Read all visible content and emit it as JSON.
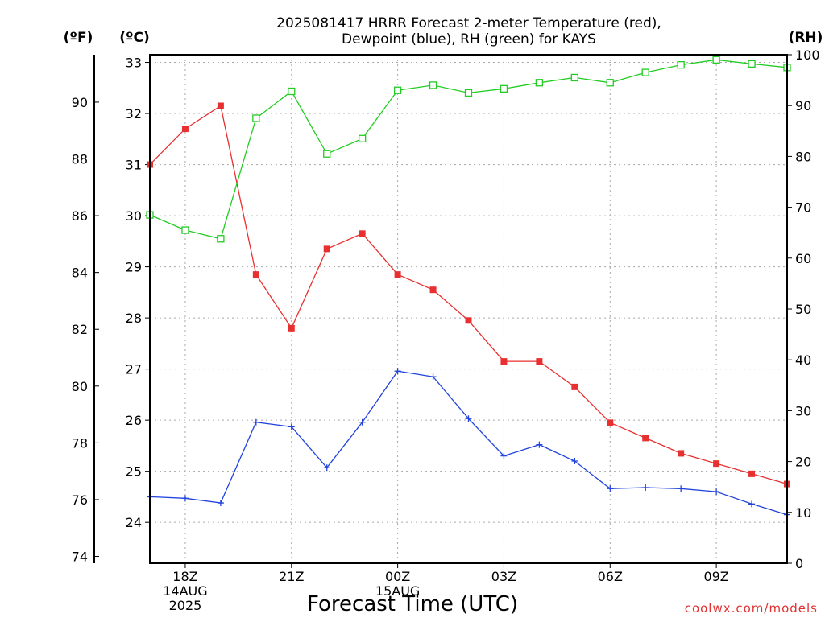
{
  "page": {
    "title_line1": "2025081417 HRRR Forecast 2-meter Temperature (red),",
    "title_line2": "Dewpoint (blue), RH (green) for KAYS",
    "unit_f": "(ºF)",
    "unit_c": "(ºC)",
    "unit_rh": "(RH)",
    "credit": "coolwx.com/models"
  },
  "chart_data": {
    "type": "line",
    "title": "2025081417 HRRR Forecast 2-meter Temperature (red), Dewpoint (blue), RH (green) for KAYS",
    "xlabel": "Forecast Time (UTC)",
    "x_hours": [
      17,
      18,
      19,
      20,
      21,
      22,
      23,
      24,
      25,
      26,
      27,
      28,
      29,
      30,
      31,
      32,
      33,
      34,
      35
    ],
    "xlim": [
      17,
      35
    ],
    "x_ticks": [
      {
        "hour": 18,
        "lines": [
          "18Z",
          "14AUG",
          "2025"
        ]
      },
      {
        "hour": 21,
        "lines": [
          "21Z"
        ]
      },
      {
        "hour": 24,
        "lines": [
          "00Z",
          "15AUG"
        ]
      },
      {
        "hour": 27,
        "lines": [
          "03Z"
        ]
      },
      {
        "hour": 30,
        "lines": [
          "06Z"
        ]
      },
      {
        "hour": 33,
        "lines": [
          "09Z"
        ]
      }
    ],
    "y_celsius": {
      "range": [
        23.2,
        33.15
      ],
      "ticks": [
        24,
        25,
        26,
        27,
        28,
        29,
        30,
        31,
        32,
        33
      ]
    },
    "y_fahrenheit": {
      "ticks": [
        74,
        76,
        78,
        80,
        82,
        84,
        86,
        88,
        90
      ]
    },
    "y_rh": {
      "range": [
        0,
        100
      ],
      "ticks": [
        0,
        10,
        20,
        30,
        40,
        50,
        60,
        70,
        80,
        90,
        100
      ]
    },
    "grid": true,
    "series": [
      {
        "name": "Temperature",
        "axis": "celsius",
        "color": "#e83030",
        "marker": "filled-square",
        "values": [
          31.0,
          31.7,
          32.15,
          28.85,
          27.8,
          29.35,
          29.65,
          28.85,
          28.55,
          27.95,
          27.15,
          27.15,
          26.65,
          25.95,
          25.65,
          25.35,
          25.15,
          24.95,
          24.75
        ]
      },
      {
        "name": "Dewpoint",
        "axis": "celsius",
        "color": "#2244dd",
        "marker": "plus",
        "values": [
          24.5,
          24.47,
          24.38,
          25.96,
          25.87,
          25.07,
          25.96,
          26.96,
          26.85,
          26.03,
          25.3,
          25.52,
          25.2,
          24.66,
          24.68,
          24.66,
          24.6,
          24.36,
          24.15
        ]
      },
      {
        "name": "RH",
        "axis": "rh",
        "color": "#22cc22",
        "marker": "open-square",
        "values": [
          68.5,
          65.5,
          63.8,
          87.5,
          92.8,
          80.5,
          83.5,
          93,
          94,
          92.5,
          93.3,
          94.5,
          95.5,
          94.5,
          96.5,
          98,
          99,
          98.2,
          97.5
        ]
      }
    ]
  }
}
